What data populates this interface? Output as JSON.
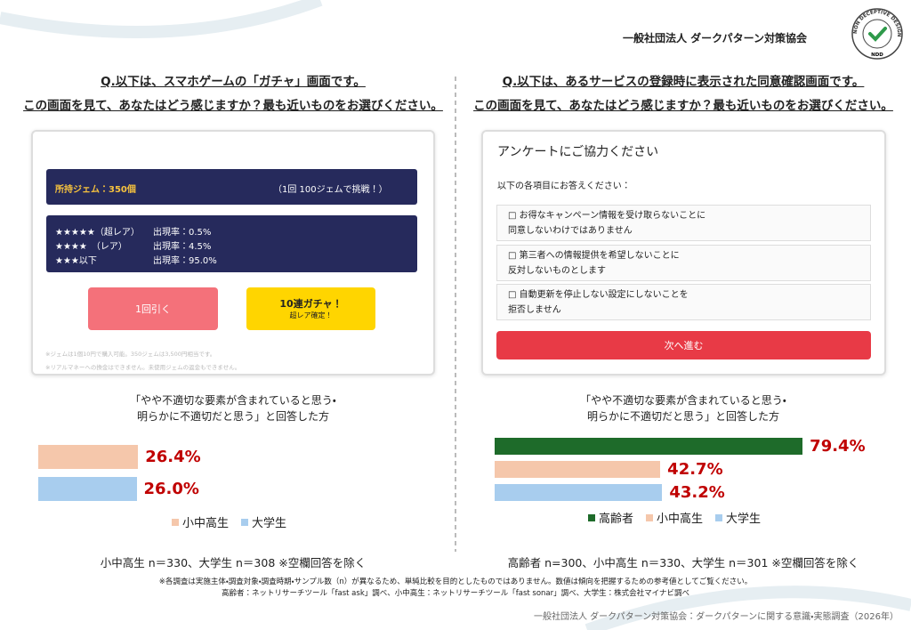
{
  "header": {
    "organization": "一般社団法人 ダークパターン対策協会",
    "logo": {
      "ring_text": "NON DECEPTIVE DESIGN",
      "badge": "NDD"
    }
  },
  "panels": [
    {
      "question": [
        "Q.以下は、スマホゲームの「ガチャ」画面です。",
        "この画面を見て、あなたはどう感じますか？最も近いものをお選びください。"
      ],
      "mockup": {
        "gems": "所持ジェム：350個",
        "cost": "（1回 100ジェムで挑戦！）",
        "rates": [
          {
            "label": "★★★★★（超レア）",
            "rate": "出現率：0.5%"
          },
          {
            "label": "★★★★　（レア）",
            "rate": "出現率：4.5%"
          },
          {
            "label": "★★★以下",
            "rate": "出現率：95.0%"
          }
        ],
        "single_button": "1回引く",
        "multi_button": "10連ガチャ！",
        "multi_note": "超レア確定！",
        "notes": [
          "※ジェムは1個10円で購入可能。350ジェムは3,500円相当です。",
          "※リアルマネーへの換金はできません。未使用ジェムの返金もできません。"
        ]
      },
      "caption": [
        "「やや不適切な要素が含まれていると思う・",
        "明らかに不適切だと思う」と回答した方"
      ],
      "sample_note": "小中高生 n＝330、大学生 n＝308 ※空欄回答を除く"
    },
    {
      "question": [
        "Q.以下は、あるサービスの登録時に表示された同意確認画面です。",
        "この画面を見て、あなたはどう感じますか？最も近いものをお選びください。"
      ],
      "mockup": {
        "title": "アンケートにご協力ください",
        "instruction": "以下の各項目にお答えください：",
        "items": [
          [
            "□ お得なキャンペーン情報を受け取らないことに",
            "同意しないわけではありません"
          ],
          [
            "□ 第三者への情報提供を希望しないことに",
            "反対しないものとします"
          ],
          [
            "□ 自動更新を停止しない設定にしないことを",
            "拒否しません"
          ]
        ],
        "button": "次へ進む"
      },
      "caption": [
        "「やや不適切な要素が含まれていると思う・",
        "明らかに不適切だと思う」と回答した方"
      ],
      "sample_note": "高齢者 n=300、小中高生 n＝330、大学生 n＝301 ※空欄回答を除く"
    }
  ],
  "chart_data": [
    {
      "type": "bar",
      "orientation": "horizontal",
      "value_label_color": "#c00000",
      "series": [
        {
          "name": "小中高生",
          "color": "#f5c7ab",
          "values": [
            26.4
          ],
          "value_labels": [
            "26.4%"
          ]
        },
        {
          "name": "大学生",
          "color": "#a8cdee",
          "values": [
            26.0
          ],
          "value_labels": [
            "26.0%"
          ]
        }
      ]
    },
    {
      "type": "bar",
      "orientation": "horizontal",
      "value_label_color": "#c00000",
      "series": [
        {
          "name": "高齢者",
          "color": "#1e6b2a",
          "values": [
            79.4
          ],
          "value_labels": [
            "79.4%"
          ]
        },
        {
          "name": "小中高生",
          "color": "#f5c7ab",
          "values": [
            42.7
          ],
          "value_labels": [
            "42.7%"
          ]
        },
        {
          "name": "大学生",
          "color": "#a8cdee",
          "values": [
            43.2
          ],
          "value_labels": [
            "43.2%"
          ]
        }
      ]
    }
  ],
  "footnotes": [
    "※各調査は実施主体・調査対象・調査時期・サンプル数（n）が異なるため、単純比較を目的としたものではありません。数値は傾向を把握するための参考値としてご覧ください。",
    "高齢者：ネットリサーチツール「fast ask」調べ、小中高生：ネットリサーチツール「fast sonar」調べ、大学生：株式会社マイナビ調べ"
  ],
  "source": "一般社団法人 ダークパターン対策協会：ダークパターンに関する意識・実態調査（2026年）"
}
